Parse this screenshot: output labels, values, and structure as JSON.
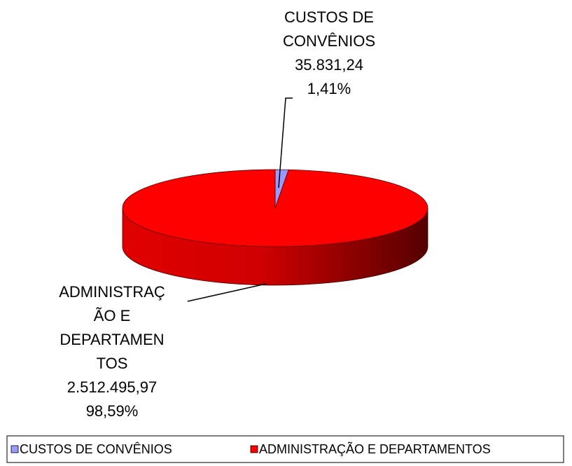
{
  "chart_data": {
    "type": "pie",
    "categories": [
      "CUSTOS DE CONVÊNIOS",
      "ADMINISTRAÇÃO E DEPARTAMENTOS"
    ],
    "values": [
      35831.24,
      2512495.97
    ],
    "value_labels": [
      "35.831,24",
      "2.512.495,97"
    ],
    "percentages": [
      1.41,
      98.59
    ],
    "percentage_labels": [
      "1,41%",
      "98,59%"
    ],
    "colors": [
      "#9999ff",
      "#ff0000"
    ],
    "legend": "bottom"
  }
}
